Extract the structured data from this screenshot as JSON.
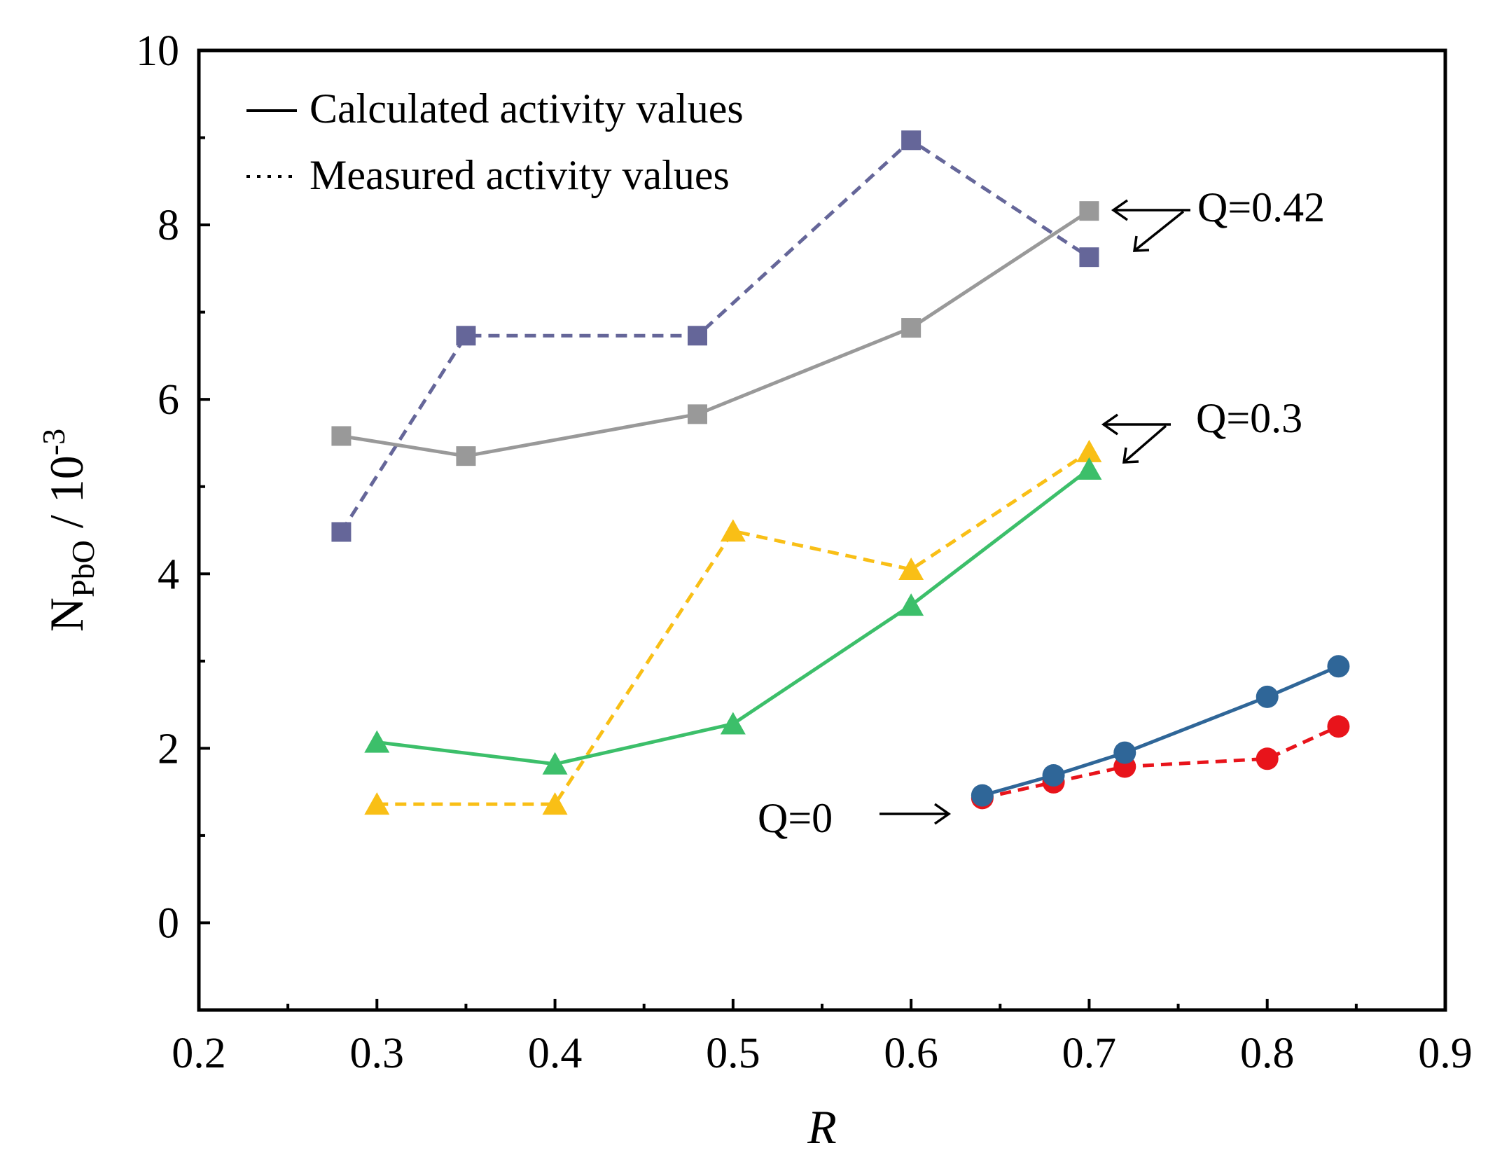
{
  "chart_data": {
    "type": "line",
    "title": "",
    "xlabel": "R",
    "ylabel_main": "N",
    "ylabel_sub": "PbO",
    "ylabel_unit": " / 10",
    "ylabel_exp": "-3",
    "xlim": [
      0.2,
      0.9
    ],
    "ylim": [
      -1,
      10
    ],
    "x_ticks": [
      {
        "value": 0.2,
        "label": "0.2"
      },
      {
        "value": 0.3,
        "label": "0.3"
      },
      {
        "value": 0.4,
        "label": "0.4"
      },
      {
        "value": 0.5,
        "label": "0.5"
      },
      {
        "value": 0.6,
        "label": "0.6"
      },
      {
        "value": 0.7,
        "label": "0.7"
      },
      {
        "value": 0.8,
        "label": "0.8"
      },
      {
        "value": 0.9,
        "label": "0.9"
      }
    ],
    "x_minor_ticks": [
      0.25,
      0.35,
      0.45,
      0.55,
      0.65,
      0.75,
      0.85
    ],
    "y_ticks": [
      {
        "value": 0,
        "label": "0"
      },
      {
        "value": 2,
        "label": "2"
      },
      {
        "value": 4,
        "label": "4"
      },
      {
        "value": 6,
        "label": "6"
      },
      {
        "value": 8,
        "label": "8"
      },
      {
        "value": 10,
        "label": "10"
      }
    ],
    "y_minor_ticks": [
      1,
      3,
      5,
      7,
      9
    ],
    "grid": false,
    "legend": {
      "placement": "top-left",
      "entries": [
        {
          "label": "Calculated activity values",
          "style": "solid"
        },
        {
          "label": "Measured activity values",
          "style": "dotted"
        }
      ]
    },
    "series": [
      {
        "name": "Q=0.42 measured",
        "style": "dashed",
        "marker": "square",
        "color": "#656699",
        "x": [
          0.28,
          0.35,
          0.48,
          0.6,
          0.7
        ],
        "y": [
          4.48,
          6.73,
          6.73,
          8.97,
          7.63
        ]
      },
      {
        "name": "Q=0.42 calculated",
        "style": "solid",
        "marker": "square",
        "color": "#999999",
        "x": [
          0.28,
          0.35,
          0.48,
          0.6,
          0.7
        ],
        "y": [
          5.58,
          5.35,
          5.83,
          6.82,
          8.16
        ]
      },
      {
        "name": "Q=0.3 measured",
        "style": "dashed",
        "marker": "triangle",
        "color": "#f9bf16",
        "x": [
          0.3,
          0.4,
          0.5,
          0.6,
          0.7
        ],
        "y": [
          1.36,
          1.36,
          4.49,
          4.05,
          5.4
        ]
      },
      {
        "name": "Q=0.3 calculated",
        "style": "solid",
        "marker": "triangle",
        "color": "#3cbf6a",
        "x": [
          0.3,
          0.4,
          0.5,
          0.6,
          0.7
        ],
        "y": [
          2.07,
          1.82,
          2.28,
          3.64,
          5.2
        ]
      },
      {
        "name": "Q=0 measured",
        "style": "dashed",
        "marker": "circle",
        "color": "#e8141b",
        "x": [
          0.64,
          0.68,
          0.72,
          0.8,
          0.84
        ],
        "y": [
          1.43,
          1.61,
          1.79,
          1.88,
          2.25
        ]
      },
      {
        "name": "Q=0 calculated",
        "style": "solid",
        "marker": "circle",
        "color": "#2f6698",
        "x": [
          0.64,
          0.68,
          0.72,
          0.8,
          0.84
        ],
        "y": [
          1.46,
          1.69,
          1.95,
          2.59,
          2.94
        ]
      }
    ],
    "annotations": [
      {
        "text": "Q=0.42",
        "x": 0.7,
        "y": 8.16
      },
      {
        "text": "Q=0.3",
        "x": 0.7,
        "y": 5.4
      },
      {
        "text": "Q=0",
        "x": 0.64,
        "y": 1.46
      }
    ]
  }
}
